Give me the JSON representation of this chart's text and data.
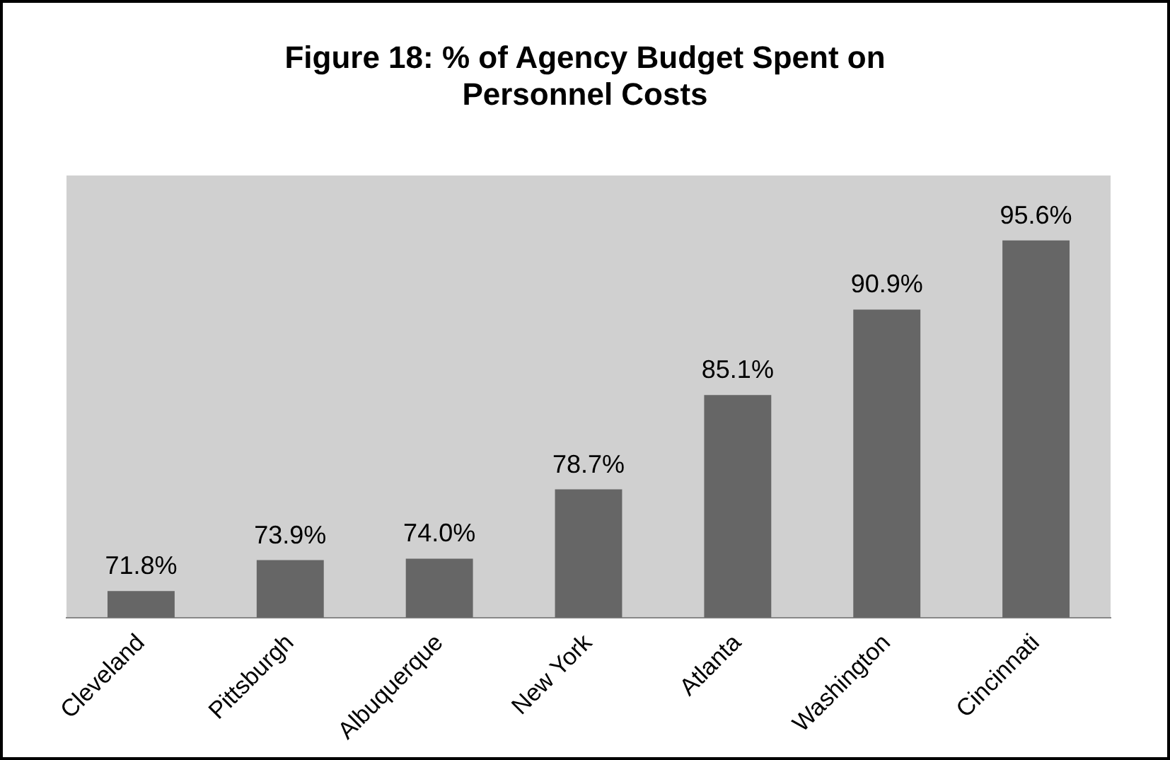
{
  "chart_data": {
    "type": "bar",
    "title": "Figure 18: % of Agency Budget Spent on Personnel Costs",
    "categories": [
      "Cleveland",
      "Pittsburgh",
      "Albuquerque",
      "New York",
      "Atlanta",
      "Washington",
      "Cincinnati"
    ],
    "values": [
      71.8,
      73.9,
      74.0,
      78.7,
      85.1,
      90.9,
      95.6
    ],
    "value_labels": [
      "71.8%",
      "73.9%",
      "74.0%",
      "78.7%",
      "85.1%",
      "90.9%",
      "95.6%"
    ],
    "color": "#666666",
    "ylim": [
      70,
      100
    ],
    "grid": false,
    "legend": false
  }
}
